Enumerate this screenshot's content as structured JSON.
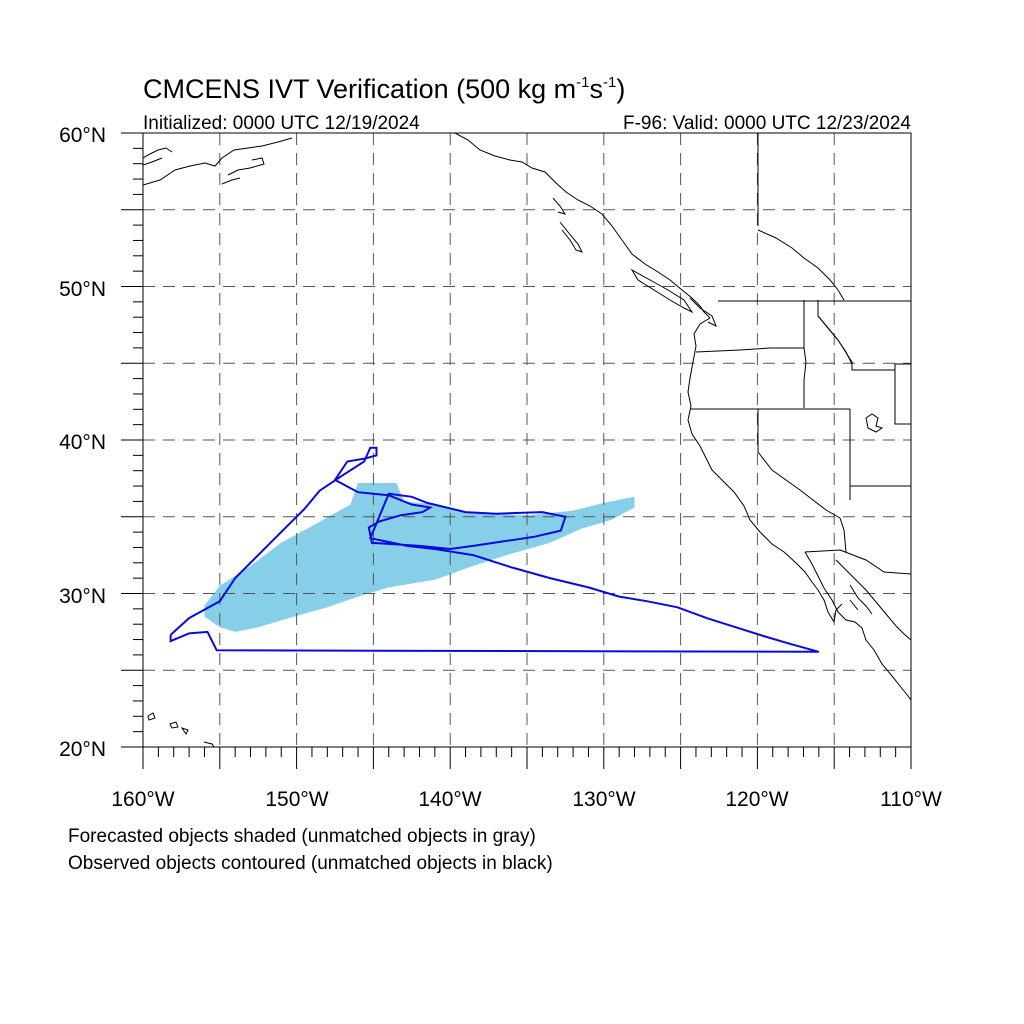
{
  "header": {
    "title_main": "CMCENS IVT Verification (500 kg m",
    "title_exp1": "-1",
    "title_mid": "s",
    "title_exp2": "-1",
    "title_end": ")",
    "initialized": "Initialized: 0000 UTC 12/19/2024",
    "valid": "F-96: Valid: 0000 UTC 12/23/2024"
  },
  "map": {
    "projection": "equirectangular",
    "lon_range": [
      -160,
      -110
    ],
    "lat_range": [
      20,
      60
    ],
    "gridlines": "dashed, every 5 degrees",
    "lat_labels": [
      "60°N",
      "50°N",
      "40°N",
      "30°N",
      "20°N"
    ],
    "lon_labels": [
      "160°W",
      "150°W",
      "140°W",
      "130°W",
      "120°W",
      "110°W"
    ],
    "colors": {
      "forecast_fill": "#87cfe8",
      "observed_contour": "#0a0adc",
      "coastline": "#000000",
      "grid": "#555555"
    }
  },
  "objects": {
    "forecast_shaded": {
      "status": "matched",
      "polygon_lonlat": [
        [
          -156,
          29.2
        ],
        [
          -155,
          30.5
        ],
        [
          -153,
          31.8
        ],
        [
          -151,
          33.3
        ],
        [
          -149,
          34.4
        ],
        [
          -146.5,
          35.8
        ],
        [
          -146,
          37.2
        ],
        [
          -143.5,
          37.2
        ],
        [
          -143,
          36
        ],
        [
          -141,
          35.8
        ],
        [
          -139,
          35.3
        ],
        [
          -135,
          35.1
        ],
        [
          -132,
          35.4
        ],
        [
          -130,
          35.9
        ],
        [
          -128,
          36.3
        ],
        [
          -128,
          35.6
        ],
        [
          -129.5,
          34.8
        ],
        [
          -131.5,
          34.2
        ],
        [
          -133.5,
          33.3
        ],
        [
          -136,
          32.6
        ],
        [
          -138.5,
          31.8
        ],
        [
          -141,
          30.9
        ],
        [
          -144,
          30.4
        ],
        [
          -146,
          29.8
        ],
        [
          -148,
          29.1
        ],
        [
          -150.5,
          28.4
        ],
        [
          -152.5,
          27.8
        ],
        [
          -154,
          27.5
        ],
        [
          -155,
          27.8
        ],
        [
          -156,
          28.5
        ]
      ]
    },
    "observed_contour": {
      "status": "matched",
      "polygon_lonlat": [
        [
          -158.2,
          27.3
        ],
        [
          -157,
          28.4
        ],
        [
          -155,
          29.5
        ],
        [
          -154,
          31
        ],
        [
          -152.5,
          32.5
        ],
        [
          -151,
          34
        ],
        [
          -149.5,
          35.5
        ],
        [
          -148.5,
          36.7
        ],
        [
          -147,
          37.7
        ],
        [
          -145.6,
          38.6
        ],
        [
          -145.2,
          39.5
        ],
        [
          -144.8,
          39.5
        ],
        [
          -144.8,
          39
        ],
        [
          -145.5,
          38.8
        ],
        [
          -146.7,
          38.6
        ],
        [
          -147.5,
          37.4
        ],
        [
          -146,
          36.6
        ],
        [
          -144,
          36.4
        ],
        [
          -142.5,
          35.8
        ],
        [
          -141.3,
          35.6
        ],
        [
          -141.8,
          35.3
        ],
        [
          -143.2,
          35.1
        ],
        [
          -144.6,
          34.7
        ],
        [
          -145.3,
          34.3
        ],
        [
          -145.1,
          33.3
        ],
        [
          -142,
          33.1
        ],
        [
          -140,
          32.9
        ],
        [
          -138.5,
          33.1
        ],
        [
          -136.5,
          33.4
        ],
        [
          -134.5,
          33.7
        ],
        [
          -132.8,
          34.1
        ],
        [
          -132.5,
          35
        ],
        [
          -134,
          35.3
        ],
        [
          -137,
          35.2
        ],
        [
          -139,
          35.3
        ],
        [
          -141.5,
          35.9
        ],
        [
          -142.5,
          36.3
        ],
        [
          -144,
          36.5
        ],
        [
          -145.2,
          33.6
        ],
        [
          -142.8,
          33.1
        ],
        [
          -141,
          32.9
        ],
        [
          -138.5,
          32.5
        ],
        [
          -136,
          31.7
        ],
        [
          -133.5,
          31
        ],
        [
          -131,
          30.4
        ],
        [
          -129,
          29.8
        ],
        [
          -127.2,
          29.5
        ],
        [
          -125.2,
          29.1
        ],
        [
          -123.3,
          28.4
        ],
        [
          -121.4,
          27.8
        ],
        [
          -119.5,
          27.2
        ],
        [
          -117.8,
          26.7
        ],
        [
          -116,
          26.2
        ],
        [
          -155.2,
          26.3
        ],
        [
          -155.8,
          27.5
        ],
        [
          -157,
          27.4
        ],
        [
          -158.2,
          26.9
        ]
      ]
    }
  },
  "legend": {
    "line1": "Forecasted objects shaded (unmatched objects in gray)",
    "line2": "Observed objects contoured (unmatched objects in black)"
  }
}
